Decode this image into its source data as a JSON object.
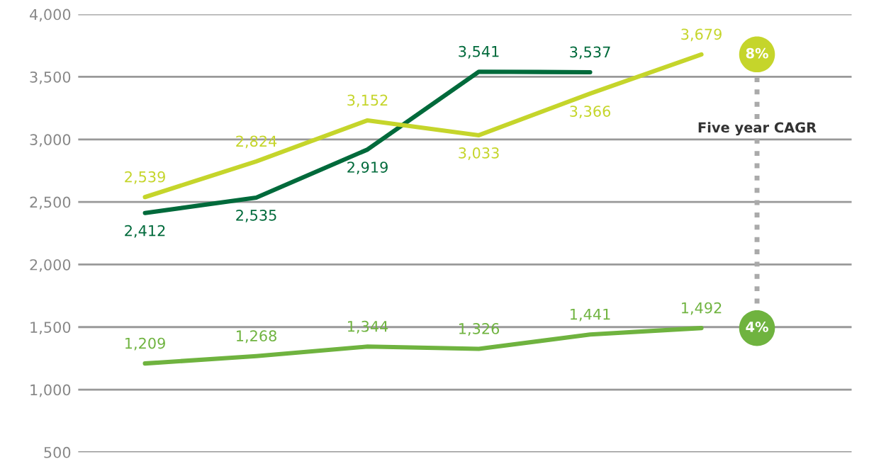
{
  "chart_data": {
    "type": "line",
    "categories": [
      null,
      null,
      null,
      null,
      null,
      null
    ],
    "series": [
      {
        "color": "#006a3b",
        "values": [
          2412,
          2535,
          2919,
          3541,
          3537,
          null
        ],
        "value_labels": [
          "2,412",
          "2,535",
          "2,919",
          "3,541",
          "3,537",
          null
        ]
      },
      {
        "color": "#c5d52b",
        "values": [
          2539,
          2824,
          3152,
          3033,
          3366,
          3679
        ],
        "value_labels": [
          "2,539",
          "2,824",
          "3,152",
          "3,033",
          "3,366",
          "3,679"
        ]
      },
      {
        "color": "#6fb33f",
        "values": [
          1209,
          1268,
          1344,
          1326,
          1441,
          1492
        ],
        "value_labels": [
          "1,209",
          "1,268",
          "1,344",
          "1,326",
          "1,441",
          "1,492"
        ]
      }
    ],
    "ylim": [
      500,
      4000
    ],
    "yticks": [
      {
        "value": 500,
        "label": "500"
      },
      {
        "value": 1000,
        "label": "1,000"
      },
      {
        "value": 1500,
        "label": "1,500"
      },
      {
        "value": 2000,
        "label": "2,000"
      },
      {
        "value": 2500,
        "label": "2,500"
      },
      {
        "value": 3000,
        "label": "3,000"
      },
      {
        "value": 3500,
        "label": "3,500"
      },
      {
        "value": 4000,
        "label": "4,000"
      }
    ],
    "grid": "y",
    "legend": false,
    "marker": "none",
    "line_style": "solid",
    "annotations": [
      "8%",
      "4%",
      "Five year CAGR"
    ]
  }
}
